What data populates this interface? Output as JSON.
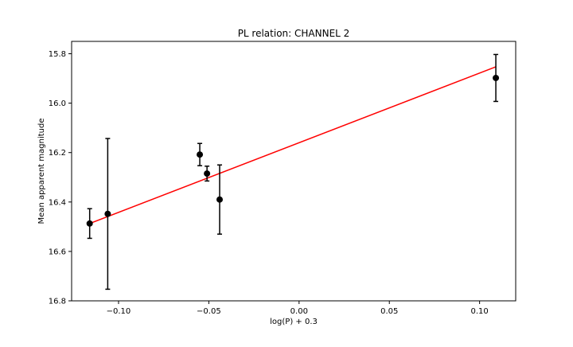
{
  "chart_data": {
    "type": "scatter",
    "title": "PL relation: CHANNEL 2",
    "xlabel": "log(P) + 0.3",
    "ylabel": "Mean apparent magnitude",
    "xlim": [
      -0.126,
      0.12
    ],
    "ylim": [
      16.8,
      15.75
    ],
    "y_inverted": true,
    "grid": false,
    "x_ticks": [
      -0.1,
      -0.05,
      0.0,
      0.05,
      0.1
    ],
    "x_tick_labels": [
      "−0.10",
      "−0.05",
      "0.00",
      "0.05",
      "0.10"
    ],
    "y_ticks": [
      15.8,
      16.0,
      16.2,
      16.4,
      16.6,
      16.8
    ],
    "y_tick_labels": [
      "15.8",
      "16.0",
      "16.2",
      "16.4",
      "16.6",
      "16.8"
    ],
    "points": [
      {
        "x": -0.116,
        "y": 16.487,
        "err": 0.06
      },
      {
        "x": -0.106,
        "y": 16.448,
        "err": 0.305
      },
      {
        "x": -0.055,
        "y": 16.208,
        "err": 0.045
      },
      {
        "x": -0.051,
        "y": 16.285,
        "err": 0.03
      },
      {
        "x": -0.044,
        "y": 16.39,
        "err": 0.14
      },
      {
        "x": 0.109,
        "y": 15.898,
        "err": 0.095
      }
    ],
    "fit_line": {
      "x": [
        -0.116,
        0.109
      ],
      "y": [
        16.487,
        15.853
      ],
      "color": "#ff0000"
    },
    "point_color": "#000000"
  }
}
